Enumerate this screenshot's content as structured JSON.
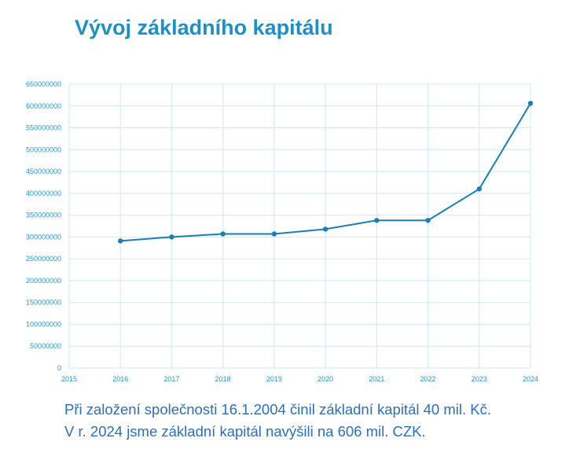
{
  "header": {
    "title": "Vývoj základního kapitálu"
  },
  "notes": {
    "line1": "Při založení společnosti 16.1.2004 činil základní kapitál 40 mil. Kč.",
    "line2": "V r. 2024 jsme základní kapitál navýšili na 606 mil. CZK."
  },
  "colors": {
    "title": "#1f8fc7",
    "series": "#1a7fb8",
    "grid": "#cfe8f5",
    "ticks": "#1f9ad6",
    "notes": "#2a6fc4"
  },
  "chart_data": {
    "type": "line",
    "title": "Vývoj základního kapitálu",
    "xlabel": "",
    "ylabel": "",
    "x_ticks": [
      2015,
      2016,
      2017,
      2018,
      2019,
      2020,
      2021,
      2022,
      2023,
      2024
    ],
    "xlim": [
      2015,
      2024
    ],
    "y_ticks": [
      0,
      50000000,
      100000000,
      150000000,
      200000000,
      250000000,
      300000000,
      350000000,
      400000000,
      450000000,
      500000000,
      550000000,
      600000000,
      650000000
    ],
    "ylim": [
      0,
      650000000
    ],
    "grid": true,
    "legend": "none",
    "series": [
      {
        "x": [
          2016,
          2017,
          2018,
          2019,
          2020,
          2021,
          2022,
          2023,
          2024
        ],
        "y": [
          291000000,
          300000000,
          307000000,
          307000000,
          318000000,
          338000000,
          338000000,
          410000000,
          606000000
        ]
      }
    ]
  }
}
